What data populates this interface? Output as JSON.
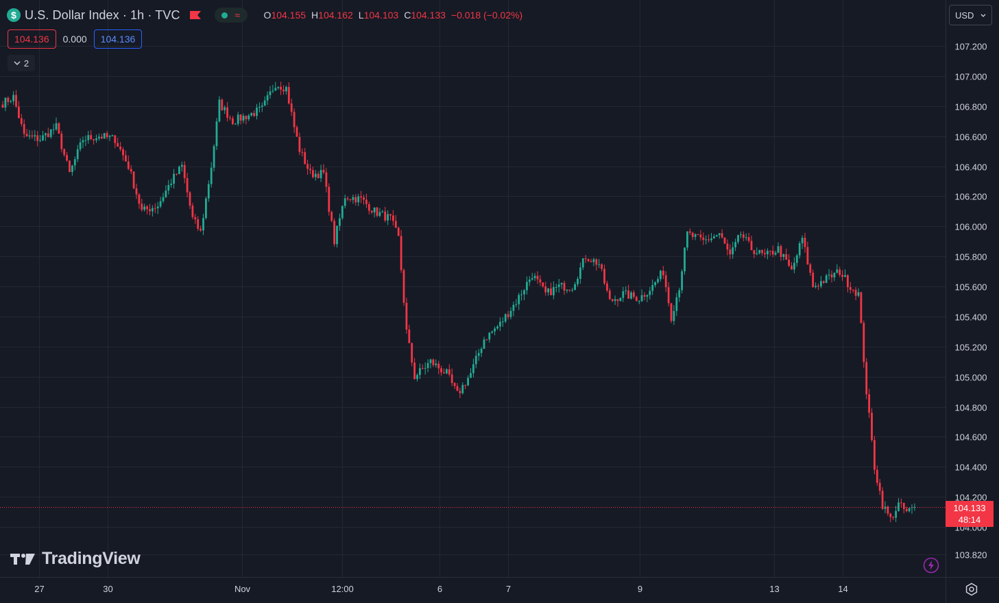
{
  "header": {
    "symbol_title": "U.S. Dollar Index · 1h · TVC",
    "dollar_icon": "$",
    "ohlc": {
      "o_label": "O",
      "o_value": "104.155",
      "h_label": "H",
      "h_value": "104.162",
      "l_label": "L",
      "l_value": "104.103",
      "c_label": "C",
      "c_value": "104.133",
      "change": "−0.018 (−0.02%)"
    },
    "bid": "104.136",
    "spread": "0.000",
    "ask": "104.136",
    "indicators_count": "2",
    "currency": "USD"
  },
  "brand": {
    "name": "TradingView"
  },
  "last_price": {
    "value": "104.133",
    "countdown": "48:14"
  },
  "colors": {
    "background": "#161a25",
    "up": "#22ab94",
    "down": "#f23645",
    "grid": "#242832",
    "text": "#d1d4dc",
    "accent_blue": "#2962ff"
  },
  "icons": [
    "dollar-icon",
    "flag-icon",
    "wave-icon",
    "chevron-down-icon",
    "lightning-icon",
    "settings-icon",
    "tradingview-logo-icon"
  ],
  "chart_data": {
    "type": "candlestick",
    "interval": "1h",
    "ylim": [
      103.72,
      107.4
    ],
    "y_ticks": [
      "107.200",
      "107.000",
      "106.800",
      "106.600",
      "106.400",
      "106.200",
      "106.000",
      "105.800",
      "105.600",
      "105.400",
      "105.200",
      "105.000",
      "104.800",
      "104.600",
      "104.400",
      "104.200",
      "104.000",
      "103.820"
    ],
    "x_ticks": [
      "27",
      "30",
      "Nov",
      "12:00",
      "6",
      "7",
      "9",
      "13",
      "14"
    ],
    "last_price": 104.133,
    "close_path": [
      {
        "i": 0,
        "c": 106.82
      },
      {
        "i": 4,
        "c": 106.86
      },
      {
        "i": 8,
        "c": 106.6
      },
      {
        "i": 14,
        "c": 106.58
      },
      {
        "i": 20,
        "c": 106.66
      },
      {
        "i": 25,
        "c": 106.35
      },
      {
        "i": 30,
        "c": 106.58
      },
      {
        "i": 36,
        "c": 106.6
      },
      {
        "i": 42,
        "c": 106.58
      },
      {
        "i": 47,
        "c": 106.4
      },
      {
        "i": 52,
        "c": 106.1
      },
      {
        "i": 58,
        "c": 106.14
      },
      {
        "i": 63,
        "c": 106.3
      },
      {
        "i": 67,
        "c": 106.4
      },
      {
        "i": 71,
        "c": 106.05
      },
      {
        "i": 74,
        "c": 105.96
      },
      {
        "i": 78,
        "c": 106.4
      },
      {
        "i": 81,
        "c": 106.82
      },
      {
        "i": 86,
        "c": 106.7
      },
      {
        "i": 92,
        "c": 106.74
      },
      {
        "i": 97,
        "c": 106.78
      },
      {
        "i": 102,
        "c": 106.95
      },
      {
        "i": 106,
        "c": 106.92
      },
      {
        "i": 109,
        "c": 106.66
      },
      {
        "i": 111,
        "c": 106.51
      },
      {
        "i": 115,
        "c": 106.35
      },
      {
        "i": 120,
        "c": 106.35
      },
      {
        "i": 124,
        "c": 105.9
      },
      {
        "i": 128,
        "c": 106.2
      },
      {
        "i": 134,
        "c": 106.18
      },
      {
        "i": 139,
        "c": 106.1
      },
      {
        "i": 145,
        "c": 106.05
      },
      {
        "i": 148,
        "c": 105.92
      },
      {
        "i": 151,
        "c": 105.3
      },
      {
        "i": 154,
        "c": 105.0
      },
      {
        "i": 160,
        "c": 105.1
      },
      {
        "i": 166,
        "c": 105.02
      },
      {
        "i": 170,
        "c": 104.88
      },
      {
        "i": 175,
        "c": 105.02
      },
      {
        "i": 180,
        "c": 105.25
      },
      {
        "i": 186,
        "c": 105.35
      },
      {
        "i": 192,
        "c": 105.5
      },
      {
        "i": 198,
        "c": 105.68
      },
      {
        "i": 203,
        "c": 105.55
      },
      {
        "i": 208,
        "c": 105.6
      },
      {
        "i": 213,
        "c": 105.6
      },
      {
        "i": 218,
        "c": 105.8
      },
      {
        "i": 223,
        "c": 105.75
      },
      {
        "i": 227,
        "c": 105.5
      },
      {
        "i": 232,
        "c": 105.55
      },
      {
        "i": 238,
        "c": 105.52
      },
      {
        "i": 243,
        "c": 105.6
      },
      {
        "i": 247,
        "c": 105.7
      },
      {
        "i": 250,
        "c": 105.4
      },
      {
        "i": 253,
        "c": 105.6
      },
      {
        "i": 256,
        "c": 105.95
      },
      {
        "i": 262,
        "c": 105.9
      },
      {
        "i": 268,
        "c": 105.95
      },
      {
        "i": 272,
        "c": 105.8
      },
      {
        "i": 276,
        "c": 105.95
      },
      {
        "i": 280,
        "c": 105.85
      },
      {
        "i": 285,
        "c": 105.8
      },
      {
        "i": 290,
        "c": 105.85
      },
      {
        "i": 295,
        "c": 105.7
      },
      {
        "i": 299,
        "c": 105.92
      },
      {
        "i": 303,
        "c": 105.6
      },
      {
        "i": 308,
        "c": 105.65
      },
      {
        "i": 313,
        "c": 105.7
      },
      {
        "i": 317,
        "c": 105.6
      },
      {
        "i": 320,
        "c": 105.55
      },
      {
        "i": 323,
        "c": 104.9
      },
      {
        "i": 326,
        "c": 104.4
      },
      {
        "i": 329,
        "c": 104.15
      },
      {
        "i": 332,
        "c": 104.05
      },
      {
        "i": 335,
        "c": 104.15
      },
      {
        "i": 338,
        "c": 104.1
      },
      {
        "i": 341,
        "c": 104.13
      }
    ]
  }
}
